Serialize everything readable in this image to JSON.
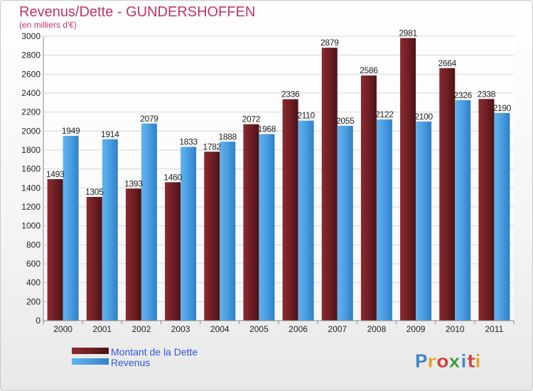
{
  "chart_data": {
    "type": "bar",
    "title": "Revenus/Dette - GUNDERSHOFFEN",
    "subtitle": "(en milliers d'€)",
    "categories": [
      "2000",
      "2001",
      "2002",
      "2003",
      "2004",
      "2005",
      "2006",
      "2007",
      "2008",
      "2009",
      "2010",
      "2011"
    ],
    "series": [
      {
        "name": "Montant de la Dette",
        "color": "#6b1d22",
        "values": [
          1493,
          1305,
          1393,
          1460,
          1782,
          2072,
          2336,
          2879,
          2586,
          2981,
          2664,
          2338
        ]
      },
      {
        "name": "Revenus",
        "color": "#4a9de0",
        "values": [
          1949,
          1914,
          2079,
          1833,
          1888,
          1968,
          2110,
          2055,
          2122,
          2100,
          2326,
          2190
        ]
      }
    ],
    "yticks": [
      0,
      200,
      400,
      600,
      800,
      1000,
      1200,
      1400,
      1600,
      1800,
      2000,
      2200,
      2400,
      2600,
      2800,
      3000
    ],
    "ylim": [
      0,
      3000
    ],
    "grid": true,
    "legend_position": "bottom-left"
  },
  "logo": {
    "text": "Proxiti",
    "colors": [
      "#4a86c8",
      "#e8a020",
      "#d24040",
      "#3aa040",
      "#4a86c8",
      "#d24040",
      "#e8a020"
    ]
  }
}
